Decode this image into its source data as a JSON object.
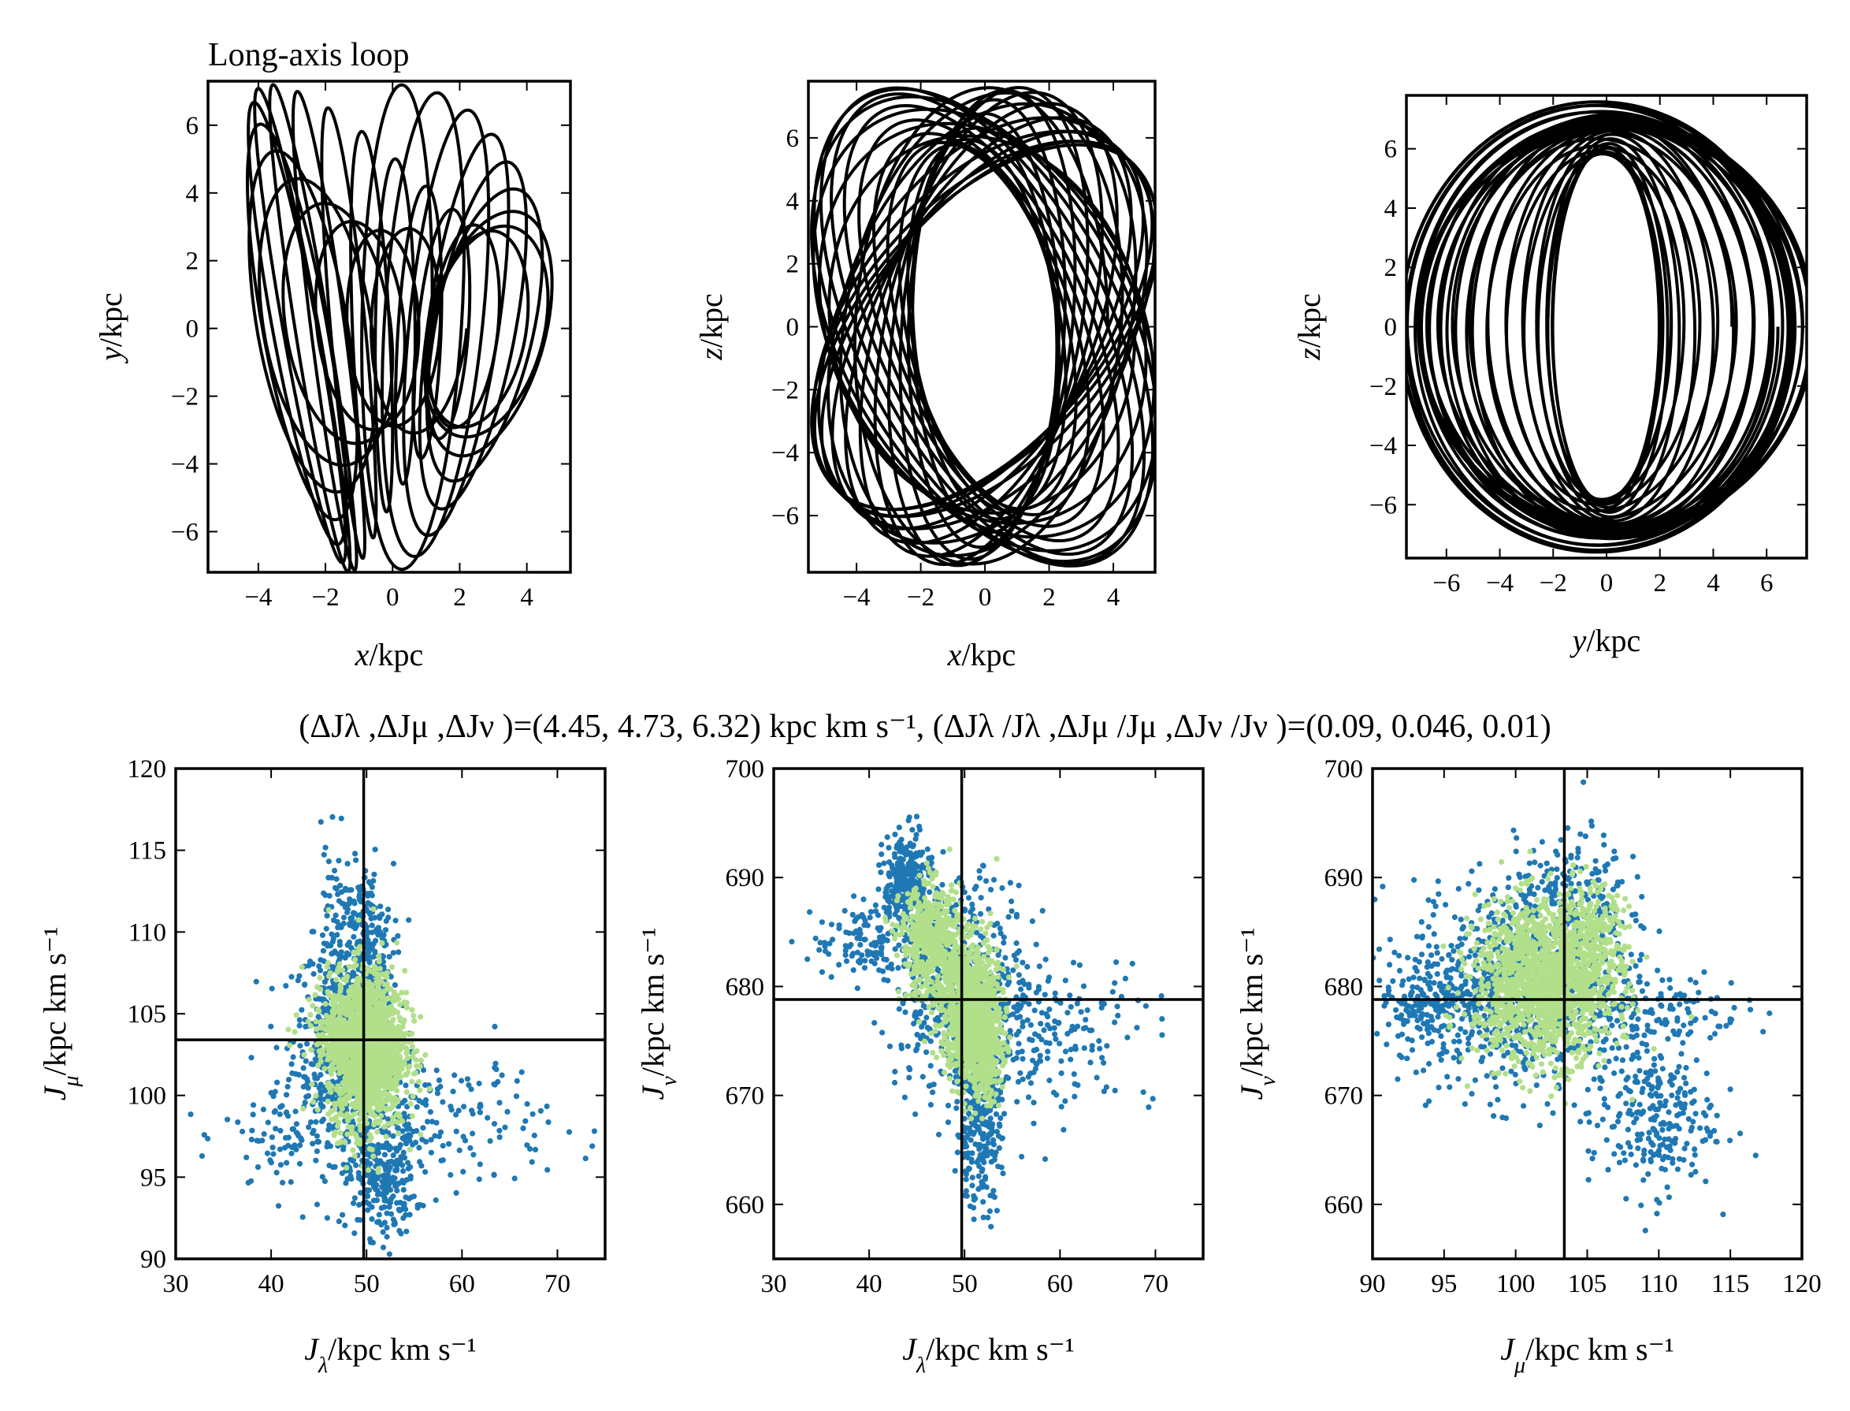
{
  "figure_title": "(ΔJλ ,ΔJμ ,ΔJν )=(4.45, 4.73, 6.32) kpc km s⁻¹, (ΔJλ /Jλ ,ΔJμ /Jμ ,ΔJν /Jν )=(0.09, 0.046, 0.01)",
  "colors": {
    "orbit": "#000000",
    "scatter_1": "#1f78b4",
    "scatter_2": "#b2df8a",
    "axes": "#000000"
  },
  "chart_data": [
    {
      "id": "xy",
      "type": "line",
      "title": "Long-axis loop",
      "xlabel": "x/kpc",
      "ylabel": "y/kpc",
      "xlim": [
        -5.5,
        5.3
      ],
      "ylim": [
        -7.2,
        7.3
      ],
      "xticks": [
        -4,
        -2,
        0,
        2,
        4
      ],
      "yticks": [
        -6,
        -4,
        -2,
        0,
        2,
        4,
        6
      ],
      "orbit": {
        "kind": "long-axis-loop",
        "rx": 5.2,
        "ry": 4.8,
        "ey": 7.2,
        "loops": 26
      }
    },
    {
      "id": "xz",
      "type": "line",
      "title": "",
      "xlabel": "x/kpc",
      "ylabel": "z/kpc",
      "xlim": [
        -5.5,
        5.3
      ],
      "ylim": [
        -7.8,
        7.8
      ],
      "xticks": [
        -4,
        -2,
        0,
        2,
        4
      ],
      "yticks": [
        -6,
        -4,
        -2,
        0,
        2,
        4,
        6
      ],
      "orbit": {
        "kind": "xz-tube",
        "rx": 5.4,
        "rz": 7.6,
        "loops": 30
      }
    },
    {
      "id": "yz",
      "type": "line",
      "title": "",
      "xlabel": "y/kpc",
      "ylabel": "z/kpc",
      "xlim": [
        -7.5,
        7.5
      ],
      "ylim": [
        -7.8,
        7.8
      ],
      "xticks": [
        -6,
        -4,
        -2,
        0,
        2,
        4,
        6
      ],
      "yticks": [
        -6,
        -4,
        -2,
        0,
        2,
        4,
        6
      ],
      "orbit": {
        "kind": "yz-tube",
        "r_in_y": 2.0,
        "r_in_z": 4.6,
        "r_out_y": 7.4,
        "r_out_z": 7.6,
        "loops": 32
      }
    },
    {
      "id": "jl_jm",
      "type": "scatter",
      "title": "",
      "xlabel": "Jλ/kpc km s⁻¹",
      "ylabel": "Jμ/kpc km s⁻¹",
      "xlim": [
        30,
        75
      ],
      "ylim": [
        90,
        120
      ],
      "xticks": [
        30,
        40,
        50,
        60,
        70
      ],
      "yticks": [
        90,
        95,
        100,
        105,
        110,
        115,
        120
      ],
      "crosshair": {
        "x": 49.7,
        "y": 103.4
      },
      "series": [
        {
          "name": "blue",
          "color": "#1f78b4",
          "clusters": [
            {
              "cx": 47.5,
              "cy": 103.5,
              "sx": 2.6,
              "sy": 3.0,
              "n": 500
            },
            {
              "cx": 50.0,
              "cy": 108.5,
              "sx": 1.4,
              "sy": 2.8,
              "n": 260
            },
            {
              "cx": 51.5,
              "cy": 95.0,
              "sx": 1.8,
              "sy": 1.8,
              "n": 260
            },
            {
              "cx": 56.0,
              "cy": 98.5,
              "sx": 6.5,
              "sy": 2.2,
              "n": 220
            },
            {
              "cx": 42.0,
              "cy": 97.5,
              "sx": 3.5,
              "sy": 2.0,
              "n": 90
            },
            {
              "cx": 47.0,
              "cy": 110.5,
              "sx": 1.2,
              "sy": 2.5,
              "n": 70
            }
          ]
        },
        {
          "name": "green",
          "color": "#b2df8a",
          "clusters": [
            {
              "cx": 50.0,
              "cy": 102.8,
              "sx": 2.0,
              "sy": 2.4,
              "n": 1500
            },
            {
              "cx": 48.5,
              "cy": 104.2,
              "sx": 2.4,
              "sy": 1.0,
              "n": 250
            }
          ]
        }
      ]
    },
    {
      "id": "jl_jn",
      "type": "scatter",
      "title": "",
      "xlabel": "Jλ/kpc km s⁻¹",
      "ylabel": "Jν/kpc km s⁻¹",
      "xlim": [
        30,
        75
      ],
      "ylim": [
        655,
        700
      ],
      "xticks": [
        30,
        40,
        50,
        60,
        70
      ],
      "yticks": [
        660,
        670,
        680,
        690,
        700
      ],
      "crosshair": {
        "x": 49.7,
        "y": 678.8
      },
      "series": [
        {
          "name": "blue",
          "color": "#1f78b4",
          "clusters": [
            {
              "cx": 44.0,
              "cy": 689.5,
              "sx": 1.2,
              "sy": 2.2,
              "n": 300
            },
            {
              "cx": 49.5,
              "cy": 680.0,
              "sx": 3.5,
              "sy": 5.0,
              "n": 500
            },
            {
              "cx": 51.5,
              "cy": 667.0,
              "sx": 1.2,
              "sy": 3.5,
              "n": 260
            },
            {
              "cx": 58.0,
              "cy": 676.0,
              "sx": 6.0,
              "sy": 3.5,
              "n": 220
            },
            {
              "cx": 40.0,
              "cy": 684.0,
              "sx": 3.0,
              "sy": 1.8,
              "n": 120
            }
          ]
        },
        {
          "name": "green",
          "color": "#b2df8a",
          "clusters": [
            {
              "cx": 46.5,
              "cy": 684.0,
              "sx": 1.6,
              "sy": 2.6,
              "n": 500
            },
            {
              "cx": 50.5,
              "cy": 678.0,
              "sx": 1.5,
              "sy": 3.2,
              "n": 900
            },
            {
              "cx": 52.0,
              "cy": 674.5,
              "sx": 1.0,
              "sy": 2.4,
              "n": 350
            }
          ]
        }
      ]
    },
    {
      "id": "jm_jn",
      "type": "scatter",
      "title": "",
      "xlabel": "Jμ/kpc km s⁻¹",
      "ylabel": "Jν/kpc km s⁻¹",
      "xlim": [
        90,
        120
      ],
      "ylim": [
        655,
        700
      ],
      "xticks": [
        90,
        95,
        100,
        105,
        110,
        115,
        120
      ],
      "yticks": [
        660,
        670,
        680,
        690,
        700
      ],
      "crosshair": {
        "x": 103.4,
        "y": 678.8
      },
      "series": [
        {
          "name": "blue",
          "color": "#1f78b4",
          "clusters": [
            {
              "cx": 100.5,
              "cy": 680.0,
              "sx": 4.0,
              "sy": 5.0,
              "n": 800
            },
            {
              "cx": 94.0,
              "cy": 678.5,
              "sx": 2.0,
              "sy": 1.6,
              "n": 150
            },
            {
              "cx": 109.5,
              "cy": 668.0,
              "sx": 2.2,
              "sy": 3.5,
              "n": 250
            },
            {
              "cx": 104.0,
              "cy": 688.0,
              "sx": 2.0,
              "sy": 3.0,
              "n": 180
            },
            {
              "cx": 110.0,
              "cy": 678.0,
              "sx": 3.0,
              "sy": 1.8,
              "n": 120
            }
          ]
        },
        {
          "name": "green",
          "color": "#b2df8a",
          "clusters": [
            {
              "cx": 102.0,
              "cy": 680.5,
              "sx": 2.4,
              "sy": 3.6,
              "n": 1500
            },
            {
              "cx": 105.5,
              "cy": 684.0,
              "sx": 1.0,
              "sy": 2.5,
              "n": 200
            }
          ]
        }
      ]
    }
  ]
}
